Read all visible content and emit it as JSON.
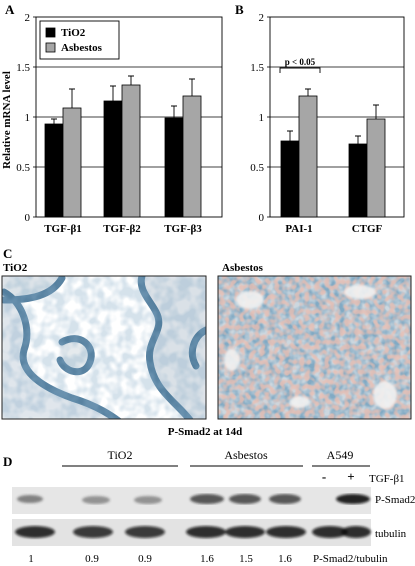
{
  "chart_data": [
    {
      "panel_label": "A",
      "type": "bar",
      "categories": [
        "TGF-β1",
        "TGF-β2",
        "TGF-β3"
      ],
      "series": [
        {
          "name": "TiO2",
          "values": [
            0.93,
            1.16,
            0.99
          ],
          "errors": [
            0.05,
            0.15,
            0.12
          ],
          "color": "#000000"
        },
        {
          "name": "Asbestos",
          "values": [
            1.09,
            1.32,
            1.21
          ],
          "errors": [
            0.19,
            0.09,
            0.17
          ],
          "color": "#a6a6a6"
        }
      ],
      "ylabel": "Relative mRNA level",
      "ylim": [
        0,
        2
      ],
      "yticks": [
        "0",
        "0.5",
        "1",
        "1.5",
        "2"
      ],
      "grid": true,
      "legend_position": "top-left"
    },
    {
      "panel_label": "B",
      "type": "bar",
      "categories": [
        "PAI-1",
        "CTGF"
      ],
      "series": [
        {
          "name": "TiO2",
          "values": [
            0.76,
            0.73
          ],
          "errors": [
            0.1,
            0.08
          ],
          "color": "#000000"
        },
        {
          "name": "Asbestos",
          "values": [
            1.21,
            0.98
          ],
          "errors": [
            0.07,
            0.14
          ],
          "color": "#a6a6a6"
        }
      ],
      "ylim": [
        0,
        2
      ],
      "yticks": [
        "0",
        "0.5",
        "1",
        "1.5",
        "2"
      ],
      "grid": true,
      "annotation": "p < 0.05"
    }
  ],
  "panel_c": {
    "label": "C",
    "left_title": "TiO2",
    "right_title": "Asbestos",
    "caption": "P-Smad2 at 14d"
  },
  "panel_d": {
    "label": "D",
    "groups": [
      "TiO2",
      "Asbestos",
      "A549"
    ],
    "treatment_label": "TGF-β1",
    "treatment_signs": [
      "-",
      "+"
    ],
    "blot_labels": [
      "P-Smad2",
      "tubulin"
    ],
    "ratios": [
      "1",
      "0.9",
      "0.9",
      "1.6",
      "1.5",
      "1.6"
    ],
    "ratio_label": "P-Smad2/tubulin"
  }
}
